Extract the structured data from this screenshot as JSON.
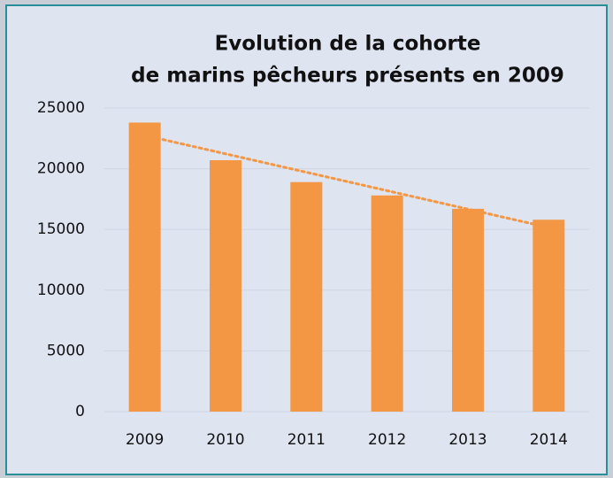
{
  "chart_data": {
    "type": "bar",
    "title": [
      "Evolution de la cohorte",
      "de marins pêcheurs présents en 2009"
    ],
    "categories": [
      "2009",
      "2010",
      "2011",
      "2012",
      "2013",
      "2014"
    ],
    "values": [
      23800,
      20700,
      18900,
      17800,
      16700,
      15800
    ],
    "color": "#f39745",
    "trendline": {
      "type": "linear",
      "color": "#f39745"
    },
    "ylim": [
      0,
      25000
    ],
    "yticks": [
      0,
      5000,
      10000,
      15000,
      20000,
      25000
    ],
    "grid": true
  }
}
